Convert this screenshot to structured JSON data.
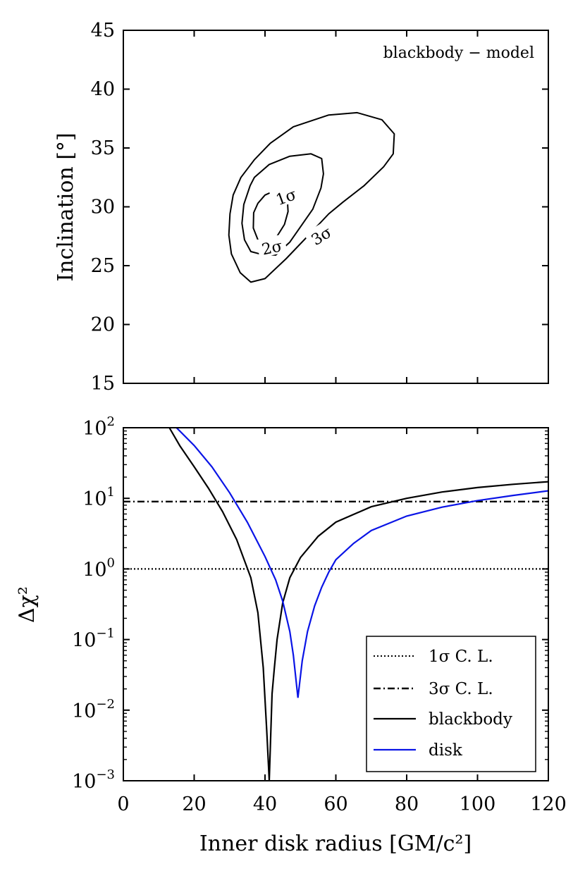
{
  "chart_data": [
    {
      "type": "contour",
      "panel": "top",
      "annotation": "blackbody − model",
      "xlim": [
        0,
        120
      ],
      "ylim": [
        15,
        45
      ],
      "ylabel": "Inclination [°]",
      "yticks": [
        15,
        20,
        25,
        30,
        35,
        40,
        45
      ],
      "contours": [
        {
          "label": "1σ",
          "label_at": [
            46,
            30.8
          ],
          "points": [
            [
              43,
              31.4
            ],
            [
              45,
              31.3
            ],
            [
              46.3,
              30.6
            ],
            [
              46.5,
              29.6
            ],
            [
              45.5,
              28.5
            ],
            [
              43.2,
              27.4
            ],
            [
              40,
              27
            ],
            [
              38,
              27.2
            ],
            [
              36.7,
              28.2
            ],
            [
              36.8,
              29.5
            ],
            [
              38,
              30.3
            ],
            [
              40,
              31
            ],
            [
              43,
              31.4
            ]
          ]
        },
        {
          "label": "2σ",
          "label_at": [
            42,
            26.5
          ],
          "points": [
            [
              37,
              32.5
            ],
            [
              41.2,
              33.6
            ],
            [
              47,
              34.3
            ],
            [
              53,
              34.5
            ],
            [
              56,
              34.1
            ],
            [
              56.5,
              32.8
            ],
            [
              55.8,
              31.6
            ],
            [
              53.5,
              29.8
            ],
            [
              50,
              28.3
            ],
            [
              47,
              27
            ],
            [
              43,
              25.9
            ],
            [
              38.5,
              26
            ],
            [
              36,
              26.2
            ],
            [
              34.2,
              27.2
            ],
            [
              33.5,
              28.6
            ],
            [
              34,
              30.2
            ],
            [
              35.8,
              31.8
            ],
            [
              37,
              32.5
            ]
          ]
        },
        {
          "label": "3σ",
          "label_at": [
            56,
            27.5
          ],
          "points": [
            [
              37,
              34
            ],
            [
              41.5,
              35.4
            ],
            [
              48,
              36.8
            ],
            [
              58,
              37.8
            ],
            [
              66,
              38
            ],
            [
              73,
              37.4
            ],
            [
              76.5,
              36.2
            ],
            [
              76.2,
              34.5
            ],
            [
              73.5,
              33.4
            ],
            [
              68,
              31.8
            ],
            [
              62,
              30.4
            ],
            [
              58,
              29.4
            ],
            [
              53,
              27.8
            ],
            [
              46,
              25.6
            ],
            [
              40,
              23.9
            ],
            [
              36,
              23.6
            ],
            [
              33,
              24.4
            ],
            [
              30.5,
              26
            ],
            [
              29.8,
              27.6
            ],
            [
              30.1,
              29.4
            ],
            [
              31,
              31
            ],
            [
              33.2,
              32.5
            ],
            [
              37,
              34
            ]
          ]
        }
      ]
    },
    {
      "type": "line",
      "panel": "bottom",
      "yscale": "log",
      "xlim": [
        0,
        120
      ],
      "ylim": [
        0.001,
        100
      ],
      "xlabel": "Inner disk radius [GM/c²]",
      "ylabel": "Δχ²",
      "xticks": [
        0,
        20,
        40,
        60,
        80,
        100,
        120
      ],
      "yticks": [
        {
          "value": 100,
          "base": "10",
          "exp": "2"
        },
        {
          "value": 10,
          "base": "10",
          "exp": "1"
        },
        {
          "value": 1,
          "base": "10",
          "exp": "0"
        },
        {
          "value": 0.1,
          "base": "10",
          "exp": "−1"
        },
        {
          "value": 0.01,
          "base": "10",
          "exp": "−2"
        },
        {
          "value": 0.001,
          "base": "10",
          "exp": "−3"
        }
      ],
      "series": [
        {
          "name": "1σ C. L.",
          "style": "dotted",
          "color": "#000000",
          "x": [
            0,
            120
          ],
          "y": [
            1,
            1
          ]
        },
        {
          "name": "3σ C. L.",
          "style": "dashdot",
          "color": "#000000",
          "x": [
            0,
            120
          ],
          "y": [
            9,
            9
          ]
        },
        {
          "name": "blackbody",
          "style": "solid",
          "color": "#000000",
          "x": [
            13,
            16,
            20,
            24,
            28,
            32,
            36,
            38,
            39.5,
            40.5,
            41.2,
            42,
            42.6,
            43.4,
            45,
            47,
            50,
            55,
            60,
            70,
            80,
            90,
            100,
            110,
            120
          ],
          "y": [
            100,
            55,
            28,
            14,
            6.5,
            2.6,
            0.75,
            0.24,
            0.04,
            0.005,
            0.001,
            0.017,
            0.038,
            0.1,
            0.33,
            0.75,
            1.45,
            2.9,
            4.6,
            7.6,
            10,
            12.3,
            14.2,
            15.8,
            17.2
          ]
        },
        {
          "name": "disk",
          "style": "solid",
          "color": "#0a14e6",
          "x": [
            15,
            20,
            25,
            30,
            35,
            40,
            43,
            45,
            47,
            48,
            49.3,
            50.5,
            52,
            54,
            56,
            58,
            60,
            65,
            70,
            80,
            90,
            100,
            110,
            120
          ],
          "y": [
            100,
            56,
            28,
            12,
            4.6,
            1.5,
            0.7,
            0.35,
            0.13,
            0.06,
            0.015,
            0.05,
            0.13,
            0.3,
            0.55,
            0.9,
            1.35,
            2.3,
            3.5,
            5.6,
            7.5,
            9.3,
            11,
            12.8
          ]
        }
      ],
      "legend": {
        "position": "lower right",
        "entries": [
          "1σ C. L.",
          "3σ C. L.",
          "blackbody",
          "disk"
        ]
      }
    }
  ]
}
